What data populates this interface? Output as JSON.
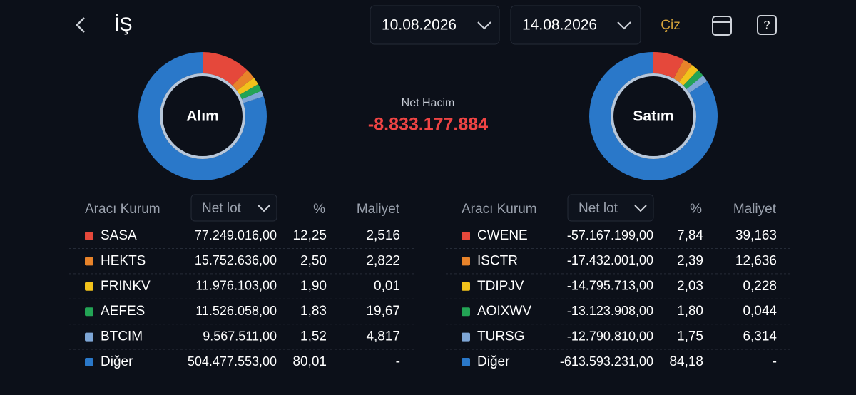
{
  "header": {
    "title": "İŞ",
    "date_from": "10.08.2026",
    "date_to": "14.08.2026",
    "action": "Çiz"
  },
  "net": {
    "label": "Net Hacim",
    "value": "-8.833.177.884"
  },
  "columns": [
    "Aracı Kurum",
    "Net lot",
    "%",
    "Maliyet"
  ],
  "colors": [
    "#e5483b",
    "#e8832a",
    "#f2c21b",
    "#23a455",
    "#7ea6d6",
    "#2a78c9"
  ],
  "buy": {
    "title": "Alım",
    "names": [
      "SASA",
      "HEKTS",
      "FRINKV",
      "AEFES",
      "BTCIM",
      "Diğer"
    ],
    "lots": [
      "77.249.016,00",
      "15.752.636,00",
      "11.976.103,00",
      "11.526.058,00",
      "9.567.511,00",
      "504.477.553,00"
    ],
    "values": [
      12.25,
      2.5,
      1.9,
      1.83,
      1.52,
      80.01
    ],
    "value_labels": [
      "12,25",
      "2,50",
      "1,90",
      "1,83",
      "1,52",
      "80,01"
    ],
    "costs": [
      "2,516",
      "2,822",
      "0,01",
      "19,67",
      "4,817",
      "-"
    ]
  },
  "sell": {
    "title": "Satım",
    "names": [
      "CWENE",
      "ISCTR",
      "TDIPJV",
      "AOIXWV",
      "TURSG",
      "Diğer"
    ],
    "lots": [
      "-57.167.199,00",
      "-17.432.001,00",
      "-14.795.713,00",
      "-13.123.908,00",
      "-12.790.810,00",
      "-613.593.231,00"
    ],
    "values": [
      7.84,
      2.39,
      2.03,
      1.8,
      1.75,
      84.18
    ],
    "value_labels": [
      "7,84",
      "2,39",
      "2,03",
      "1,80",
      "1,75",
      "84,18"
    ],
    "costs": [
      "39,163",
      "12,636",
      "0,228",
      "0,044",
      "6,314",
      "-"
    ]
  }
}
